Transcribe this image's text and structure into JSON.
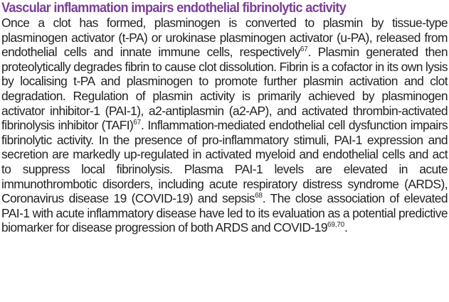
{
  "heading": "Vascular inflammation impairs endothelial fibrinolytic activity",
  "paragraph": {
    "s1": "Once a clot has formed, plasminogen is converted to plasmin by tissue-type plasminogen activator (t-PA) or urokinase plasminogen activator (u-PA), released from endothelial cells and innate immune cells, respectively",
    "ref1": "67",
    "s2": ". Plasmin generated then proteolytically degrades fibrin to cause clot dissolution. Fibrin is a cofactor in its own lysis by localising t-PA and plasminogen to promote further plasmin activation and clot degradation. Regulation of plasmin activity is primarily achieved by plasminogen activator inhibitor-1 (PAI-1), a2-antiplasmin (a2-AP), and activated thrombin-activated fibrinolysis inhibitor (TAFI)",
    "ref2": "67",
    "s3": ". Inflammation-mediated endothelial cell dysfunction impairs fibrinolytic activity. In the presence of pro-inflammatory stimuli, PAI-1 expression and secretion are markedly up-regulated in activated myeloid and endothelial cells and act to suppress local fibrinolysis. Plasma PAI-1 levels are elevated in acute immunothrombotic disorders, including acute respiratory distress syndrome (ARDS), Coronavirus disease 19 (COVID-19) and sepsis",
    "ref3": "68",
    "s4": ". The close association of elevated PAI-1 with acute inflammatory disease have led to its evaluation as a potential predictive biomarker for disease progression of both ARDS and COVID-19",
    "ref4": "69,70",
    "s5": "."
  }
}
